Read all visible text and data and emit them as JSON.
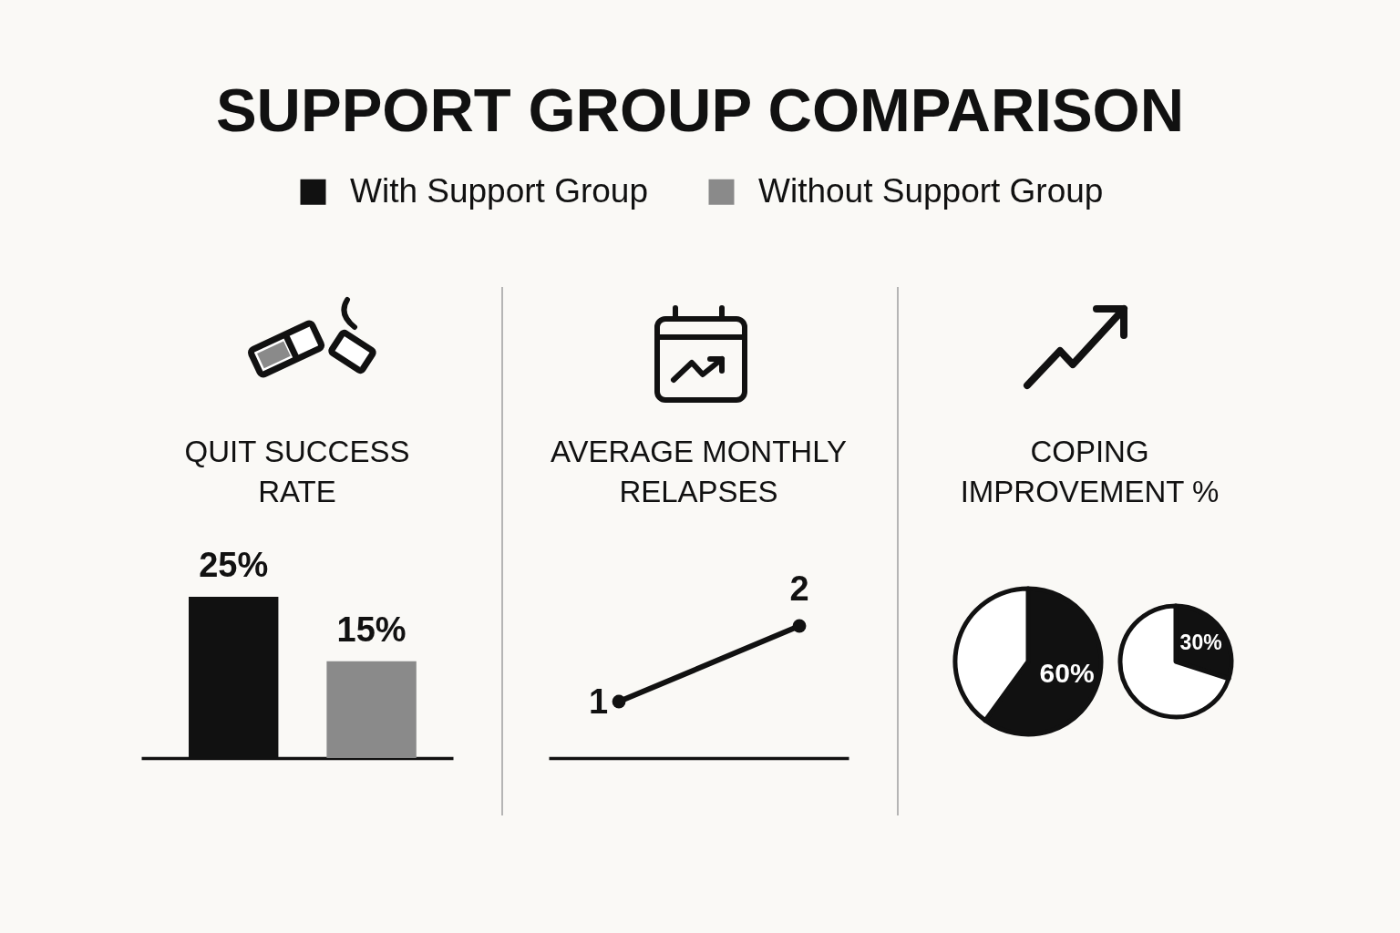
{
  "chart_data": [
    {
      "type": "bar",
      "title": "SUPPORT GROUP COMPARISON",
      "subtitle": "QUIT SUCCESS RATE",
      "categories": [
        null
      ],
      "series": [
        {
          "name": "With Support Group",
          "color": "#111111",
          "values": [
            25
          ],
          "value_labels": [
            "25%"
          ]
        },
        {
          "name": "Without Support Group",
          "color": "#8a8a8a",
          "values": [
            15
          ],
          "value_labels": [
            "15%"
          ]
        }
      ],
      "legend": "top"
    },
    {
      "type": "line",
      "title": "AVERAGE MONTHLY RELAPSES",
      "categories": [
        null,
        null
      ],
      "values": [
        1,
        2
      ],
      "color": "#111111",
      "data_labels": true,
      "marker": "circle"
    },
    {
      "type": "pie",
      "title": "COPING IMPROVEMENT %",
      "categories": [
        null,
        null
      ],
      "values": [
        60,
        40
      ],
      "colors": [
        "#111111",
        "#ffffff"
      ],
      "value_labels": [
        "60%",
        null
      ]
    },
    {
      "type": "pie",
      "categories": [
        null,
        null
      ],
      "values": [
        30,
        70
      ],
      "colors": [
        "#111111",
        "#ffffff"
      ],
      "value_labels": [
        "30%",
        null
      ]
    }
  ]
}
